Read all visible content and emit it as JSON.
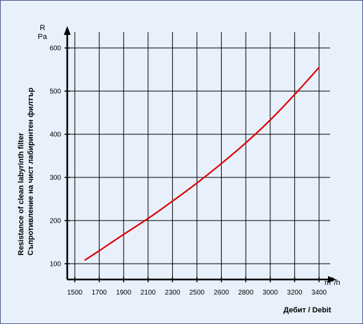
{
  "chart_data": {
    "type": "line",
    "title": "",
    "y_unit_symbol": "R",
    "y_unit": "Pa",
    "x_unit_base": "m",
    "x_unit_exp": "3",
    "x_unit_tail": "/h",
    "xlabel": "Дебит / Debit",
    "ylabel_en": "Resistance of clean labyrinth filter",
    "ylabel_bg": "Съпротивление на чист лабиринтен филтър",
    "x_ticks": [
      "1500",
      "1700",
      "1900",
      "2100",
      "2300",
      "2500",
      "2600",
      "2800",
      "3000",
      "3200",
      "3400"
    ],
    "y_ticks": [
      100,
      200,
      300,
      400,
      500,
      600
    ],
    "ylim": [
      80,
      640
    ],
    "grid": true,
    "line_color": "#dd0000",
    "series": [
      {
        "x_index": [
          0.4,
          1.0,
          2.0,
          3.0,
          4.0,
          5.0,
          6.0,
          7.0,
          8.0,
          9.0,
          10.0
        ],
        "values": [
          108,
          130,
          168,
          205,
          245,
          287,
          332,
          380,
          433,
          492,
          555
        ]
      }
    ]
  }
}
